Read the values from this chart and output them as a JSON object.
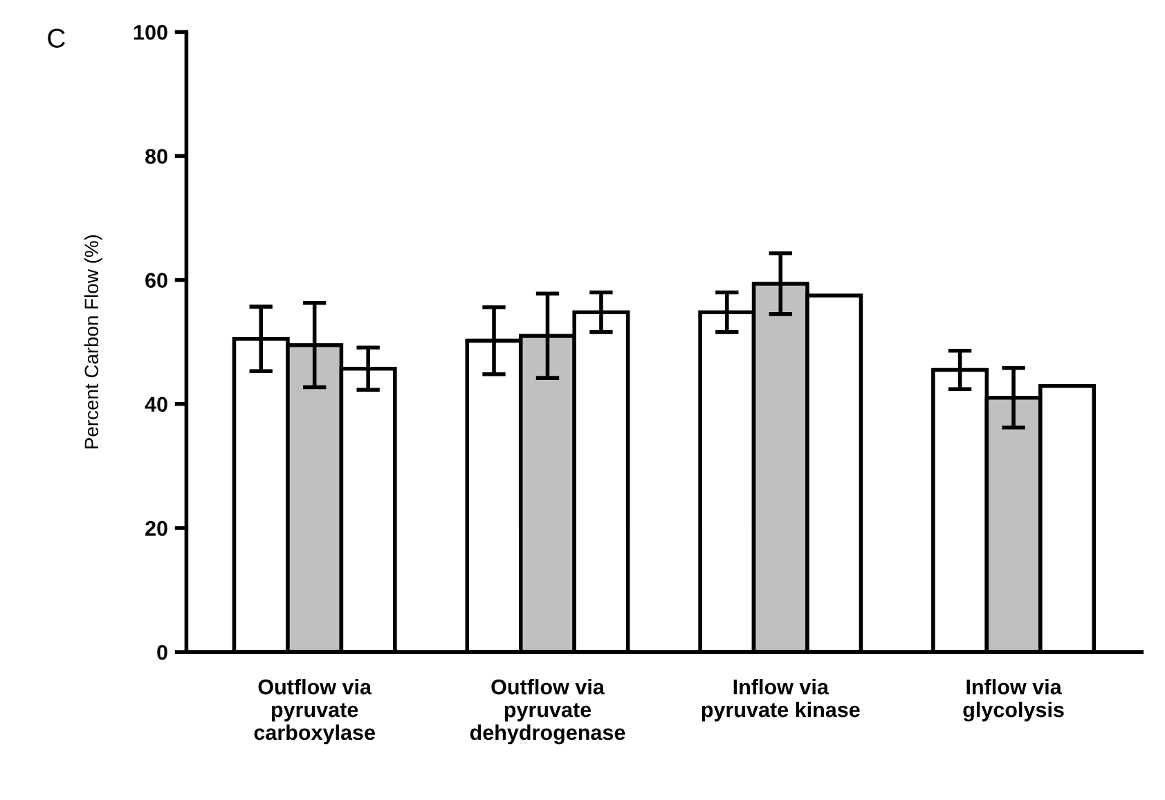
{
  "chart_data": {
    "type": "bar",
    "ylabel": "Percent Carbon Flow (%)",
    "annotations": [
      "C"
    ],
    "categories": [
      "Outflow via\npyruvate\ncarboxylase",
      "Outflow via\npyruvate\ndehydrogenase",
      "Inflow via\npyruvate kinase",
      "Inflow via\nglycolysis"
    ],
    "series": [
      {
        "color": "#ffffff",
        "values": [
          50.5,
          50.2,
          54.8,
          45.5
        ],
        "errors": [
          5.2,
          5.4,
          3.2,
          3.1
        ]
      },
      {
        "color": "#c0c0c0",
        "values": [
          49.5,
          51,
          59.4,
          41
        ],
        "errors": [
          6.8,
          6.8,
          4.9,
          4.8
        ]
      },
      {
        "color": "#ffffff",
        "values": [
          45.7,
          54.8,
          57.5,
          42.9
        ],
        "errors": [
          3.4,
          3.2,
          null,
          null
        ]
      }
    ],
    "ylim": [
      0,
      100
    ],
    "yticks": [
      0,
      20,
      40,
      60,
      80,
      100
    ],
    "grid": false,
    "legend": false
  }
}
